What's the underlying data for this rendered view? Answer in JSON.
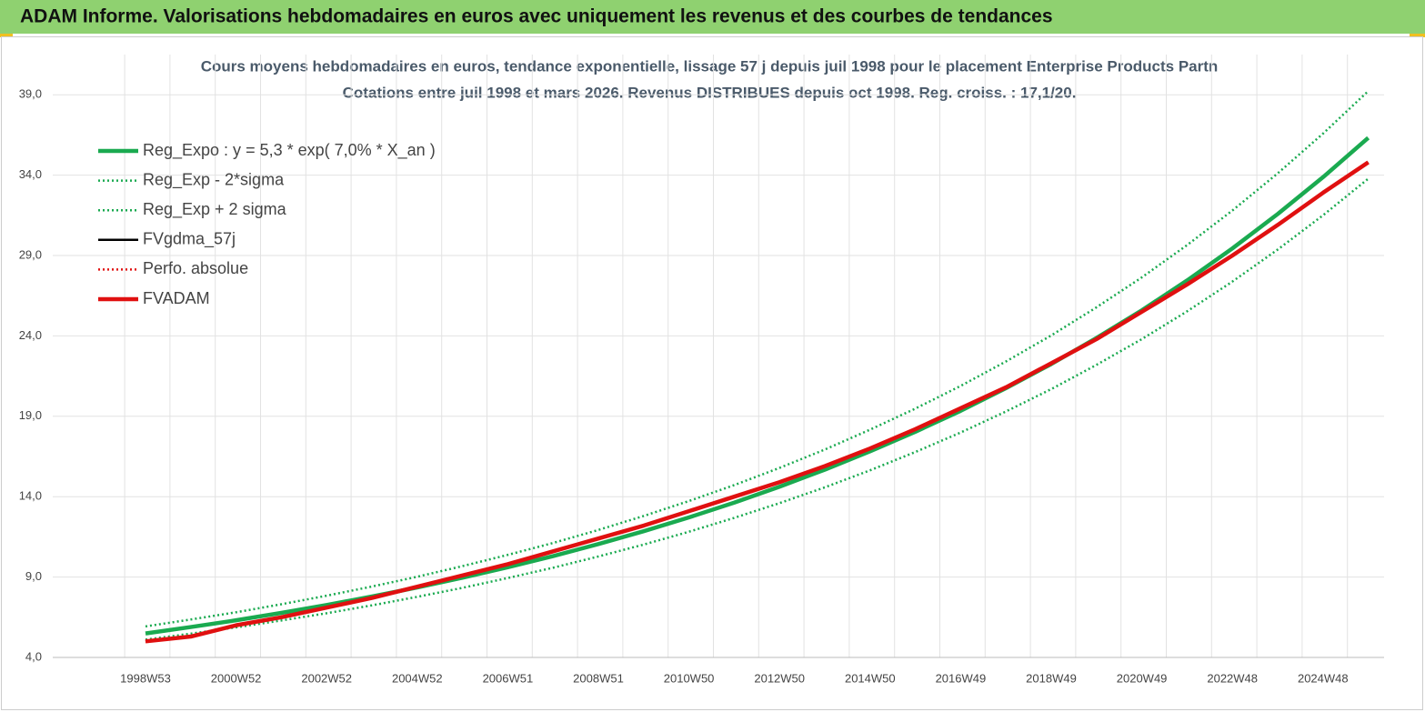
{
  "header": {
    "title": "ADAM Informe. Valorisations hebdomadaires en euros avec uniquement les revenus et des courbes de tendances"
  },
  "chart_data": {
    "type": "line",
    "title": "Cours moyens hebdomadaires en euros, tendance exponentielle, lissage 57 j depuis juil 1998 pour le placement Enterprise Products Partn",
    "subtitle": "Cotations entre juil 1998 et mars 2026. Revenus DISTRIBUES depuis oct 1998. Reg. croiss. : 17,1/20.",
    "categories": [
      "1998W53",
      null,
      "2000W52",
      null,
      "2002W52",
      null,
      "2004W52",
      null,
      "2006W51",
      null,
      "2008W51",
      null,
      "2010W50",
      null,
      "2012W50",
      null,
      "2014W50",
      null,
      "2016W49",
      null,
      "2018W49",
      null,
      "2020W49",
      null,
      "2022W48",
      null,
      "2024W48",
      null
    ],
    "series": [
      {
        "name": "Reg_Expo : y = 5,3 * exp( 7,0% *  X_an )",
        "color": "#1aaa50",
        "style": "solid",
        "values": [
          5.49,
          5.89,
          6.31,
          6.77,
          7.26,
          7.79,
          8.35,
          8.96,
          9.61,
          10.3,
          11.05,
          11.85,
          12.71,
          13.63,
          14.62,
          15.68,
          16.82,
          18.04,
          19.34,
          20.75,
          22.25,
          23.87,
          25.59,
          27.45,
          29.44,
          31.58,
          33.87,
          36.32
        ]
      },
      {
        "name": "Reg_Exp - 2*sigma",
        "color": "#1aaa50",
        "style": "dotted",
        "values": [
          5.11,
          5.48,
          5.87,
          6.3,
          6.75,
          7.24,
          7.77,
          8.33,
          8.94,
          9.58,
          10.28,
          11.02,
          11.82,
          12.68,
          13.6,
          14.58,
          15.64,
          16.78,
          17.99,
          19.3,
          20.69,
          22.2,
          23.8,
          25.53,
          27.38,
          29.37,
          31.5,
          33.78
        ]
      },
      {
        "name": "Reg_Exp + 2 sigma",
        "color": "#1aaa50",
        "style": "dotted",
        "values": [
          5.93,
          6.36,
          6.81,
          7.31,
          7.84,
          8.41,
          9.02,
          9.68,
          10.38,
          11.12,
          11.93,
          12.8,
          13.73,
          14.72,
          15.79,
          16.93,
          18.17,
          19.48,
          20.89,
          22.41,
          24.03,
          25.78,
          27.64,
          29.65,
          31.8,
          34.11,
          36.58,
          39.23
        ]
      },
      {
        "name": "FVgdma_57j",
        "color": "#000000",
        "style": "solid",
        "values": [
          5.0,
          5.3,
          6.0,
          6.5,
          7.1,
          7.7,
          8.4,
          9.1,
          9.8,
          10.6,
          11.4,
          12.2,
          13.1,
          14.0,
          14.9,
          15.9,
          17.0,
          18.2,
          19.5,
          20.8,
          22.3,
          23.8,
          25.5,
          27.2,
          29.0,
          30.9,
          32.9,
          34.8
        ]
      },
      {
        "name": "Perfo. absolue",
        "color": "#e01010",
        "style": "dotted",
        "values": [
          5.0,
          5.3,
          6.0,
          6.5,
          7.1,
          7.7,
          8.4,
          9.1,
          9.8,
          10.6,
          11.4,
          12.2,
          13.1,
          14.0,
          14.9,
          15.9,
          17.0,
          18.2,
          19.5,
          20.8,
          22.3,
          23.8,
          25.5,
          27.2,
          29.0,
          30.9,
          32.9,
          34.8
        ]
      },
      {
        "name": "FVADAM",
        "color": "#e01010",
        "style": "solid",
        "values": [
          5.0,
          5.3,
          6.0,
          6.5,
          7.1,
          7.7,
          8.4,
          9.1,
          9.8,
          10.6,
          11.4,
          12.2,
          13.1,
          14.0,
          14.9,
          15.9,
          17.0,
          18.2,
          19.5,
          20.8,
          22.3,
          23.8,
          25.5,
          27.2,
          29.0,
          30.9,
          32.9,
          34.8
        ]
      }
    ],
    "ylim": [
      4,
      41.5
    ],
    "yticks": [
      {
        "value": 4,
        "label": "4,0"
      },
      {
        "value": 9,
        "label": "9,0"
      },
      {
        "value": 14,
        "label": "14,0"
      },
      {
        "value": 19,
        "label": "19,0"
      },
      {
        "value": 24,
        "label": "24,0"
      },
      {
        "value": 29,
        "label": "29,0"
      },
      {
        "value": 34,
        "label": "34,0"
      },
      {
        "value": 39,
        "label": "39,0"
      }
    ],
    "grid": true,
    "legend": "upper left"
  }
}
